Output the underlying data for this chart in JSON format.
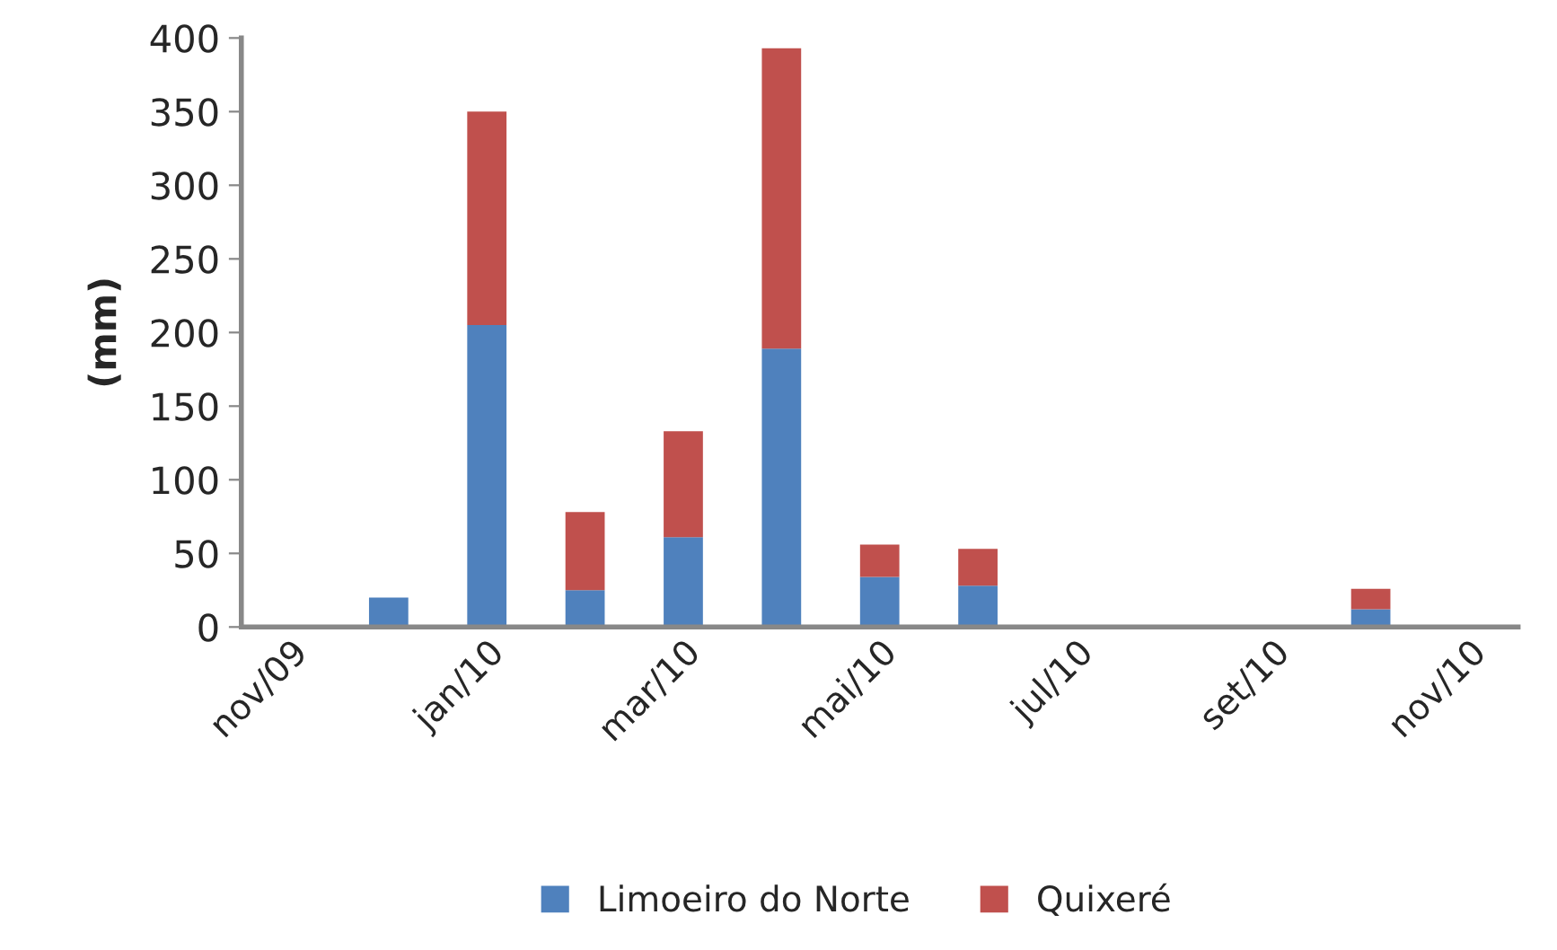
{
  "chart_data": {
    "type": "bar",
    "stacked": true,
    "ylabel": "(mm)",
    "categories": [
      "nov/09",
      null,
      "jan/10",
      null,
      "mar/10",
      null,
      "mai/10",
      null,
      "jul/10",
      null,
      "set/10",
      null,
      "nov/10"
    ],
    "series": [
      {
        "name": "Limoeiro do Norte",
        "color": "#4f81bd",
        "values": [
          0,
          20,
          205,
          25,
          61,
          189,
          34,
          28,
          0,
          0,
          0,
          12,
          0
        ]
      },
      {
        "name": "Quixeré",
        "color": "#c0504d",
        "values": [
          0,
          0,
          145,
          53,
          72,
          204,
          22,
          25,
          0,
          0,
          0,
          14,
          0
        ]
      }
    ],
    "ylim": [
      0,
      400
    ],
    "yticks": [
      0,
      50,
      100,
      150,
      200,
      250,
      300,
      350,
      400
    ],
    "grid": false,
    "legend": "bottom"
  }
}
